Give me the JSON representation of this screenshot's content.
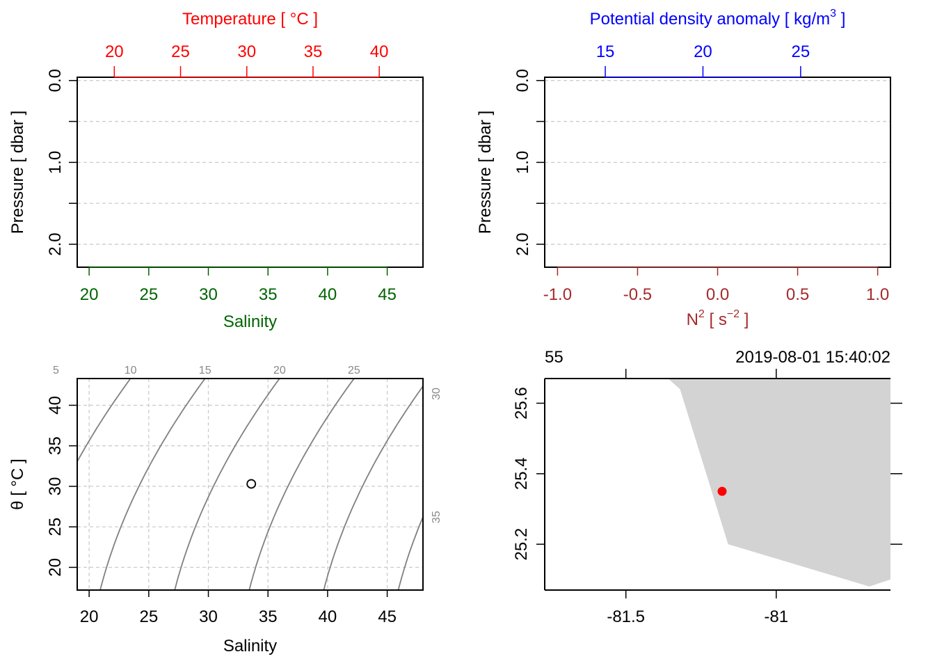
{
  "colors": {
    "temperature": "#ff0000",
    "salinity": "#006400",
    "density": "#0000ff",
    "n2": "#a52a2a",
    "isopycnal": "#808080",
    "land": "#d3d3d3",
    "station": "#ff0000"
  },
  "chart_data": [
    {
      "type": "line",
      "panel": "profile-temperature-salinity",
      "series": [],
      "grid": true,
      "x_top": {
        "label": "Temperature [ °C ]",
        "ticks": [
          20,
          25,
          30,
          35,
          40
        ],
        "tick_labels": [
          "20",
          "25",
          "30",
          "35",
          "40"
        ],
        "range": [
          17.2,
          43.3
        ]
      },
      "x_bottom": {
        "label": "Salinity",
        "ticks": [
          20,
          25,
          30,
          35,
          40,
          45
        ],
        "tick_labels": [
          "20",
          "25",
          "30",
          "35",
          "40",
          "45"
        ],
        "range": [
          19,
          48
        ]
      },
      "y": {
        "label": "Pressure [ dbar ]",
        "ticks": [
          0,
          0.5,
          1,
          1.5,
          2
        ],
        "tick_labels": [
          "0.0",
          "",
          "1.0",
          "",
          "2.0"
        ],
        "range": [
          2.28,
          -0.04
        ],
        "reversed": true
      }
    },
    {
      "type": "line",
      "panel": "profile-density-n2",
      "series": [],
      "grid": true,
      "x_top": {
        "label_main": "Potential density anomaly [ kg/m",
        "label_sup": "3",
        "label_end": " ]",
        "ticks": [
          15,
          20,
          25
        ],
        "tick_labels": [
          "15",
          "20",
          "25"
        ],
        "range": [
          11.9,
          29.6
        ]
      },
      "x_bottom": {
        "label_main": "N",
        "label_sup": "2",
        "label_mid": " [ s",
        "label_sup2": "−2",
        "label_end": " ]",
        "ticks": [
          -1,
          -0.5,
          0,
          0.5,
          1
        ],
        "tick_labels": [
          "-1.0",
          "-0.5",
          "0.0",
          "0.5",
          "1.0"
        ],
        "range": [
          -1.08,
          1.08
        ]
      },
      "y": {
        "label": "Pressure [ dbar ]",
        "ticks": [
          0,
          0.5,
          1,
          1.5,
          2
        ],
        "tick_labels": [
          "0.0",
          "",
          "1.0",
          "",
          "2.0"
        ],
        "range": [
          2.28,
          -0.04
        ],
        "reversed": true
      }
    },
    {
      "type": "scatter",
      "panel": "ts-diagram",
      "grid": true,
      "x": {
        "label": "Salinity",
        "ticks": [
          20,
          25,
          30,
          35,
          40,
          45
        ],
        "tick_labels": [
          "20",
          "25",
          "30",
          "35",
          "40",
          "45"
        ],
        "range": [
          19,
          48
        ]
      },
      "y": {
        "label": "θ [ °C ]",
        "ticks": [
          20,
          25,
          30,
          35,
          40
        ],
        "tick_labels": [
          "20",
          "25",
          "30",
          "35",
          "40"
        ],
        "range": [
          17.2,
          43.3
        ]
      },
      "points": [
        {
          "x": 33.6,
          "y": 30.3
        }
      ],
      "isopycnals": [
        {
          "label": "5",
          "label_at": "top"
        },
        {
          "label": "10",
          "label_at": "top"
        },
        {
          "label": "15",
          "label_at": "top"
        },
        {
          "label": "20",
          "label_at": "top"
        },
        {
          "label": "25",
          "label_at": "top"
        },
        {
          "label": "30",
          "label_at": "right"
        },
        {
          "label": "35",
          "label_at": "right"
        }
      ]
    },
    {
      "type": "scatter",
      "panel": "location-map",
      "x": {
        "ticks": [
          -81.5,
          -81
        ],
        "tick_labels": [
          "-81.5",
          "-81"
        ],
        "range": [
          -81.77,
          -80.62
        ]
      },
      "y": {
        "ticks": [
          25.2,
          25.4,
          25.6
        ],
        "tick_labels": [
          "25.2",
          "25.4",
          "25.6"
        ],
        "range": [
          25.07,
          25.67
        ]
      },
      "top_left_label": "55",
      "top_right_label": "2019-08-01 15:40:02",
      "station": {
        "lon": -81.18,
        "lat": 25.35
      },
      "land": [
        [
          -81.36,
          25.67
        ],
        [
          -81.32,
          25.64
        ],
        [
          -81.16,
          25.2
        ],
        [
          -80.69,
          25.08
        ],
        [
          -80.62,
          25.1
        ],
        [
          -80.62,
          25.67
        ]
      ]
    }
  ]
}
